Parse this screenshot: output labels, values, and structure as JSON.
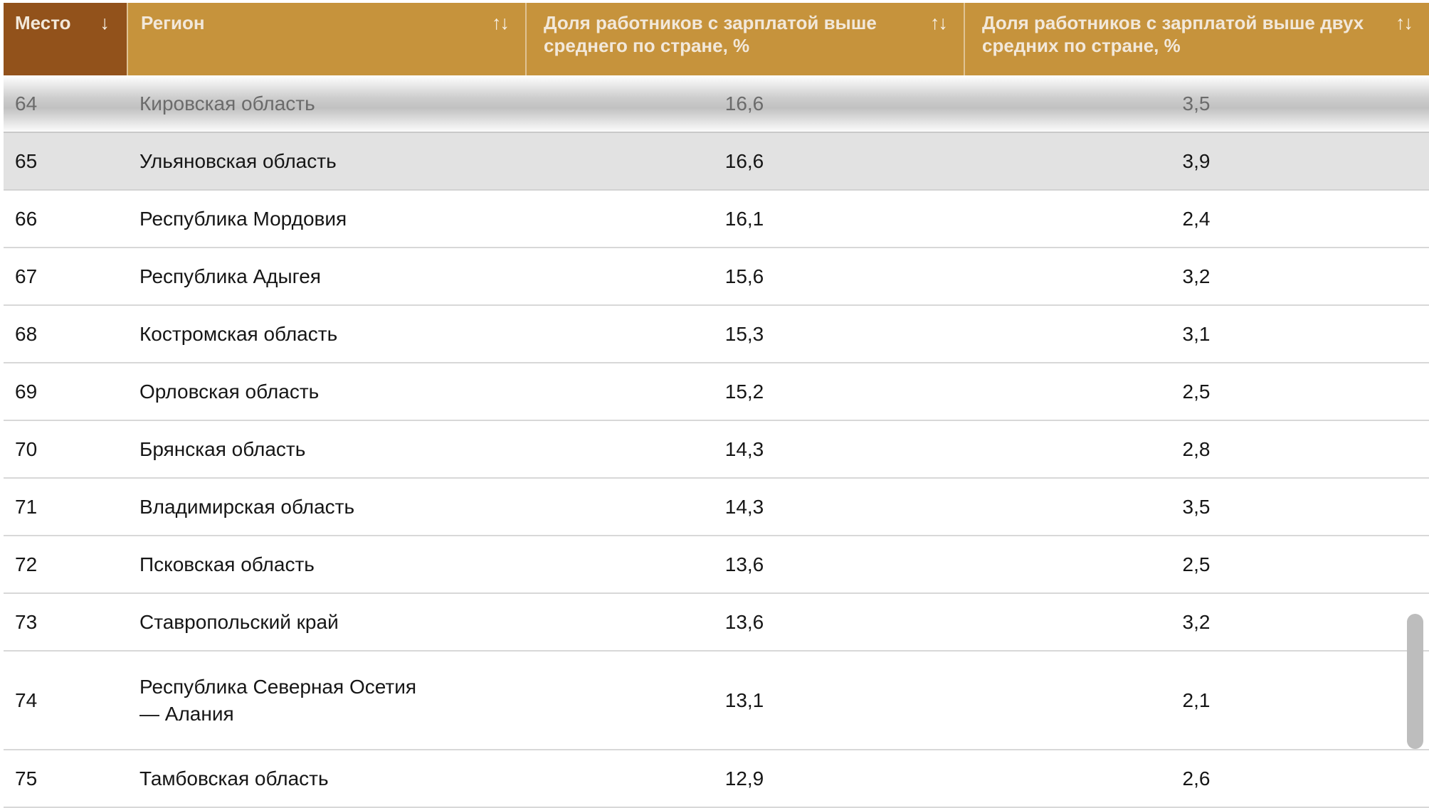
{
  "table": {
    "columns": {
      "place": {
        "label": "Место",
        "sort_icon": "↓",
        "sorted": "desc"
      },
      "region": {
        "label": "Регион",
        "sort_icon": "↑↓",
        "sorted": "none"
      },
      "share_above_avg": {
        "label": "Доля работников с зарплатой выше среднего по стране, %",
        "sort_icon": "↑↓",
        "sorted": "none"
      },
      "share_above_two_avg": {
        "label": "Доля работников с зарплатой выше двух средних по стране, %",
        "sort_icon": "↑↓",
        "sorted": "none"
      }
    },
    "rows": [
      {
        "place": "64",
        "region": "Кировская область",
        "share_above_avg": "16,6",
        "share_above_two_avg": "3,5",
        "state": "highlighted"
      },
      {
        "place": "65",
        "region": "Ульяновская область",
        "share_above_avg": "16,6",
        "share_above_two_avg": "3,9",
        "state": "shaded"
      },
      {
        "place": "66",
        "region": "Республика Мордовия",
        "share_above_avg": "16,1",
        "share_above_two_avg": "2,4",
        "state": "normal"
      },
      {
        "place": "67",
        "region": "Республика Адыгея",
        "share_above_avg": "15,6",
        "share_above_two_avg": "3,2",
        "state": "normal"
      },
      {
        "place": "68",
        "region": "Костромская область",
        "share_above_avg": "15,3",
        "share_above_two_avg": "3,1",
        "state": "normal"
      },
      {
        "place": "69",
        "region": "Орловская область",
        "share_above_avg": "15,2",
        "share_above_two_avg": "2,5",
        "state": "normal"
      },
      {
        "place": "70",
        "region": "Брянская область",
        "share_above_avg": "14,3",
        "share_above_two_avg": "2,8",
        "state": "normal"
      },
      {
        "place": "71",
        "region": "Владимирская область",
        "share_above_avg": "14,3",
        "share_above_two_avg": "3,5",
        "state": "normal"
      },
      {
        "place": "72",
        "region": "Псковская область",
        "share_above_avg": "13,6",
        "share_above_two_avg": "2,5",
        "state": "normal"
      },
      {
        "place": "73",
        "region": "Ставропольский край",
        "share_above_avg": "13,6",
        "share_above_two_avg": "3,2",
        "state": "normal"
      },
      {
        "place": "74",
        "region": "Республика Северная Осетия — Алания",
        "share_above_avg": "13,1",
        "share_above_two_avg": "2,1",
        "state": "normal tall"
      },
      {
        "place": "75",
        "region": "Тамбовская область",
        "share_above_avg": "12,9",
        "share_above_two_avg": "2,6",
        "state": "normal"
      }
    ]
  },
  "colors": {
    "header_place_bg": "#92521B",
    "header_bg": "#C6933C",
    "header_text": "#F2E8DA",
    "row_shaded_bg": "#E2E2E2",
    "row_separator": "#D8D8D8",
    "scroll_thumb": "#BDBDBD"
  }
}
